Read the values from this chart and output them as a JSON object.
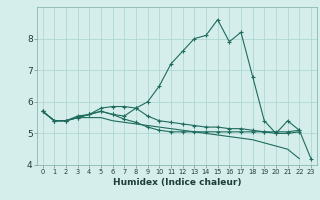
{
  "xlabel": "Humidex (Indice chaleur)",
  "background_color": "#d5eeeb",
  "grid_color": "#a8d4d0",
  "line_color": "#1e6b5e",
  "x": [
    0,
    1,
    2,
    3,
    4,
    5,
    6,
    7,
    8,
    9,
    10,
    11,
    12,
    13,
    14,
    15,
    16,
    17,
    18,
    19,
    20,
    21,
    22,
    23
  ],
  "line1": [
    5.7,
    5.4,
    5.4,
    5.5,
    5.6,
    5.8,
    5.85,
    5.85,
    5.8,
    5.55,
    5.4,
    5.35,
    5.3,
    5.25,
    5.2,
    5.2,
    5.15,
    5.15,
    5.1,
    5.05,
    5.0,
    5.0,
    5.05,
    null
  ],
  "line2": [
    5.7,
    5.4,
    5.4,
    5.55,
    5.6,
    5.7,
    5.6,
    5.45,
    5.35,
    5.2,
    5.1,
    5.05,
    5.05,
    5.05,
    5.05,
    5.05,
    5.05,
    5.05,
    5.05,
    5.05,
    5.05,
    5.05,
    5.1,
    null
  ],
  "line3": [
    5.7,
    5.4,
    5.4,
    5.5,
    5.5,
    5.5,
    5.4,
    5.35,
    5.3,
    5.25,
    5.2,
    5.15,
    5.1,
    5.05,
    5.0,
    4.95,
    4.9,
    4.85,
    4.8,
    4.7,
    4.6,
    4.5,
    4.2,
    null
  ],
  "line4": [
    5.7,
    5.4,
    5.4,
    5.5,
    5.6,
    5.7,
    5.6,
    5.55,
    5.8,
    6.0,
    6.5,
    7.2,
    7.6,
    8.0,
    8.1,
    8.6,
    7.9,
    8.2,
    6.8,
    5.4,
    5.0,
    5.4,
    5.1,
    4.2
  ],
  "ylim": [
    4.0,
    9.0
  ],
  "xlim": [
    -0.5,
    23.5
  ],
  "yticks": [
    4,
    5,
    6,
    7,
    8
  ],
  "xticks": [
    0,
    1,
    2,
    3,
    4,
    5,
    6,
    7,
    8,
    9,
    10,
    11,
    12,
    13,
    14,
    15,
    16,
    17,
    18,
    19,
    20,
    21,
    22,
    23
  ]
}
